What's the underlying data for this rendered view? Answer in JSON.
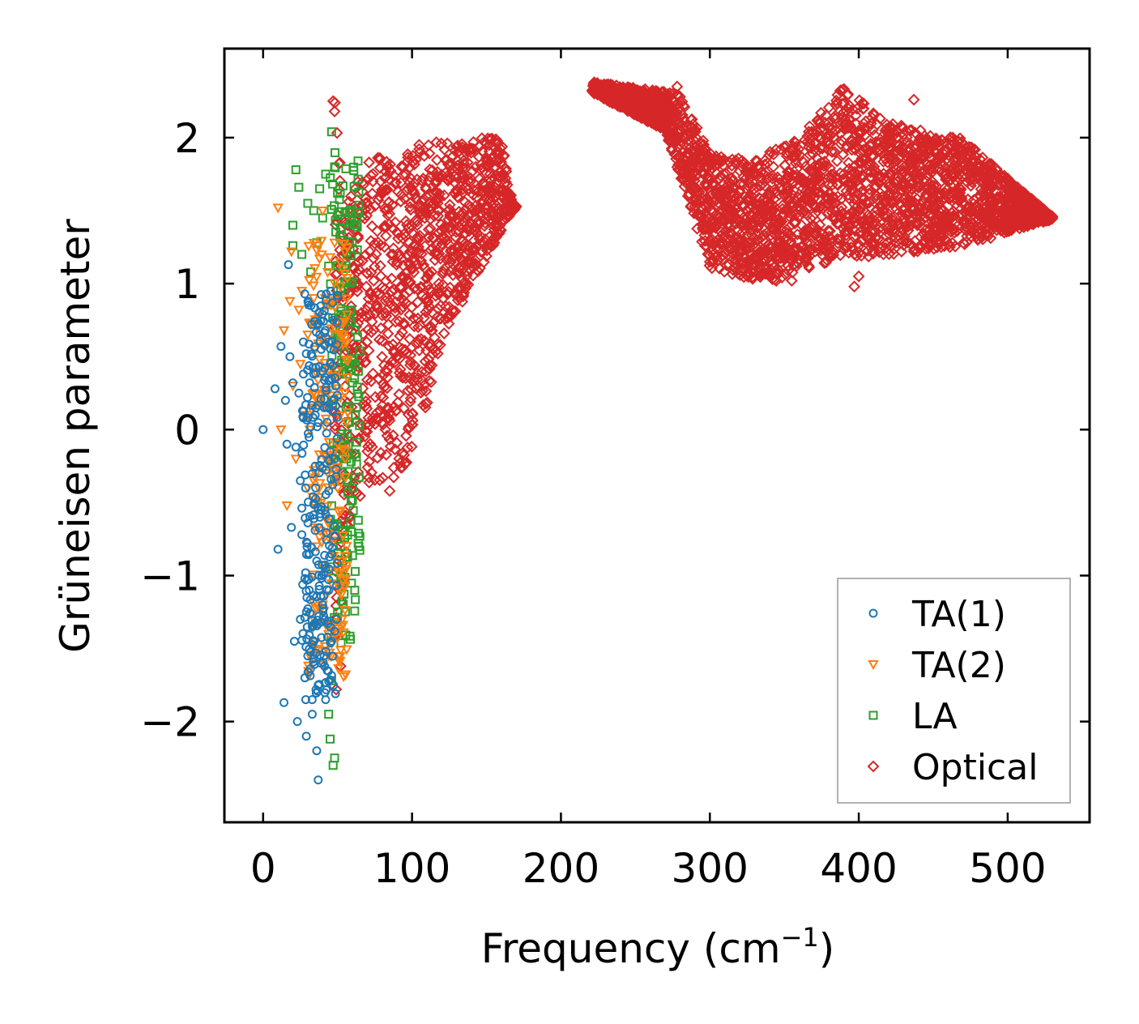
{
  "chart_data": {
    "type": "scatter",
    "xlabel": "Frequency (cm",
    "xlabel_sup": "−1",
    "xlabel_tail": ")",
    "ylabel": "Grüneisen parameter",
    "xlim": [
      -26,
      555
    ],
    "ylim": [
      -2.69,
      2.61
    ],
    "xticks": [
      0,
      100,
      200,
      300,
      400,
      500
    ],
    "xtick_labels": [
      "0",
      "100",
      "200",
      "300",
      "400",
      "500"
    ],
    "yticks": [
      -2,
      -1,
      0,
      1,
      2
    ],
    "ytick_labels": [
      "−2",
      "−1",
      "0",
      "1",
      "2"
    ],
    "grid": false,
    "legend_position": "lower-right",
    "series": [
      {
        "name": "TA(1)",
        "marker": "circle",
        "color": "#1f77b4",
        "points": [
          [
            0,
            0
          ],
          [
            8,
            0.28
          ],
          [
            10,
            -0.82
          ],
          [
            12,
            0.57
          ],
          [
            14,
            -1.87
          ],
          [
            15,
            0.2
          ],
          [
            16,
            -0.1
          ],
          [
            17,
            1.13
          ],
          [
            18,
            0.5
          ],
          [
            19,
            -0.67
          ],
          [
            20,
            0.32
          ],
          [
            21,
            -1.45
          ],
          [
            22,
            -0.12
          ],
          [
            23,
            -2.0
          ],
          [
            24,
            0.25
          ],
          [
            25,
            -0.35
          ],
          [
            26,
            -0.72
          ],
          [
            27,
            0.08
          ],
          [
            28,
            -1.02
          ],
          [
            29,
            0.52
          ],
          [
            30,
            -1.55
          ],
          [
            31,
            -0.85
          ],
          [
            32,
            0.02
          ],
          [
            33,
            -1.35
          ],
          [
            34,
            0.38
          ],
          [
            35,
            -0.25
          ],
          [
            36,
            -2.2
          ],
          [
            37,
            -1.75
          ],
          [
            38,
            0.65
          ],
          [
            39,
            -0.55
          ],
          [
            40,
            -1.2
          ],
          [
            41,
            0.15
          ],
          [
            42,
            -0.95
          ],
          [
            43,
            -1.65
          ],
          [
            44,
            -0.42
          ],
          [
            45,
            0.45
          ],
          [
            46,
            -1.45
          ],
          [
            47,
            0.75
          ],
          [
            48,
            -0.2
          ],
          [
            49,
            0.3
          ],
          [
            50,
            0.92
          ],
          [
            37,
            -2.4
          ],
          [
            33,
            -1.95
          ],
          [
            29,
            -2.1
          ],
          [
            35,
            0.1
          ],
          [
            39,
            0.55
          ],
          [
            42,
            -1.85
          ],
          [
            44,
            0.6
          ],
          [
            46,
            0.35
          ],
          [
            31,
            -1.1
          ],
          [
            27,
            0.6
          ],
          [
            25,
            -1.3
          ],
          [
            38,
            -0.6
          ],
          [
            41,
            -1.55
          ],
          [
            43,
            0.05
          ],
          [
            45,
            -0.15
          ],
          [
            36,
            -0.9
          ],
          [
            34,
            -1.45
          ],
          [
            47,
            0.2
          ],
          [
            40,
            0.4
          ]
        ],
        "cloud": {
          "x": [
            26,
            50
          ],
          "y": [
            -1.9,
            0.95
          ],
          "count": 230
        }
      },
      {
        "name": "TA(2)",
        "marker": "triangle-down",
        "color": "#ff7f0e",
        "points": [
          [
            10,
            1.52
          ],
          [
            12,
            0.0
          ],
          [
            14,
            0.68
          ],
          [
            16,
            -0.52
          ],
          [
            18,
            0.88
          ],
          [
            19,
            1.22
          ],
          [
            20,
            0.3
          ],
          [
            22,
            -0.2
          ],
          [
            24,
            0.82
          ],
          [
            26,
            0.95
          ],
          [
            28,
            0.1
          ],
          [
            30,
            -0.4
          ],
          [
            32,
            0.72
          ],
          [
            34,
            0.9
          ],
          [
            36,
            -0.8
          ],
          [
            38,
            0.48
          ],
          [
            40,
            -1.2
          ],
          [
            42,
            0.85
          ],
          [
            44,
            -1.55
          ],
          [
            46,
            0.2
          ],
          [
            48,
            1.28
          ],
          [
            50,
            0.4
          ],
          [
            52,
            -0.9
          ],
          [
            54,
            0.65
          ],
          [
            56,
            0.05
          ],
          [
            45,
            1.18
          ],
          [
            40,
            1.5
          ],
          [
            35,
            0.55
          ],
          [
            30,
            0.65
          ],
          [
            25,
            0.45
          ],
          [
            50,
            -0.35
          ],
          [
            53,
            -1.3
          ]
        ],
        "cloud": {
          "x": [
            30,
            57
          ],
          "y": [
            -1.7,
            1.3
          ],
          "count": 200
        }
      },
      {
        "name": "LA",
        "marker": "square",
        "color": "#2ca02c",
        "points": [
          [
            22,
            1.78
          ],
          [
            20,
            1.4
          ],
          [
            24,
            1.66
          ],
          [
            26,
            1.2
          ],
          [
            30,
            1.55
          ],
          [
            32,
            1.08
          ],
          [
            34,
            1.5
          ],
          [
            36,
            1.28
          ],
          [
            38,
            1.65
          ],
          [
            40,
            1.45
          ],
          [
            42,
            1.75
          ],
          [
            44,
            1.12
          ],
          [
            46,
            2.04
          ],
          [
            48,
            1.8
          ],
          [
            50,
            1.62
          ],
          [
            45,
            -2.12
          ],
          [
            47,
            -2.3
          ],
          [
            44,
            -1.95
          ],
          [
            48,
            -2.25
          ],
          [
            46,
            -1.72
          ],
          [
            50,
            -1.25
          ],
          [
            52,
            -0.8
          ],
          [
            56,
            -0.2
          ],
          [
            58,
            0.05
          ],
          [
            60,
            0.32
          ],
          [
            62,
            0.1
          ],
          [
            64,
            0.4
          ],
          [
            20,
            1.26
          ]
        ],
        "cloud": {
          "x": [
            45,
            65
          ],
          "y": [
            -1.5,
            1.9
          ],
          "count": 170
        }
      },
      {
        "name": "Optical",
        "marker": "diamond",
        "color": "#d62728",
        "points": [
          [
            47,
            2.25
          ],
          [
            48,
            2.18
          ],
          [
            49,
            -1.78
          ],
          [
            52,
            -1.62
          ],
          [
            85,
            -0.42
          ],
          [
            222,
            2.37
          ],
          [
            278,
            2.35
          ],
          [
            280,
            2.28
          ],
          [
            437,
            2.26
          ],
          [
            397,
            0.98
          ],
          [
            400,
            1.05
          ],
          [
            420,
            2.0
          ],
          [
            355,
            1.02
          ],
          [
            300,
            1.15
          ],
          [
            250,
            2.25
          ],
          [
            260,
            2.18
          ],
          [
            240,
            2.3
          ],
          [
            500,
            1.72
          ],
          [
            530,
            1.46
          ],
          [
            480,
            1.3
          ],
          [
            460,
            1.4
          ],
          [
            315,
            1.85
          ]
        ],
        "cloud": {
          "x": [
            48,
            530
          ],
          "y": [
            -0.6,
            2.35
          ],
          "count": 4200
        }
      }
    ]
  }
}
